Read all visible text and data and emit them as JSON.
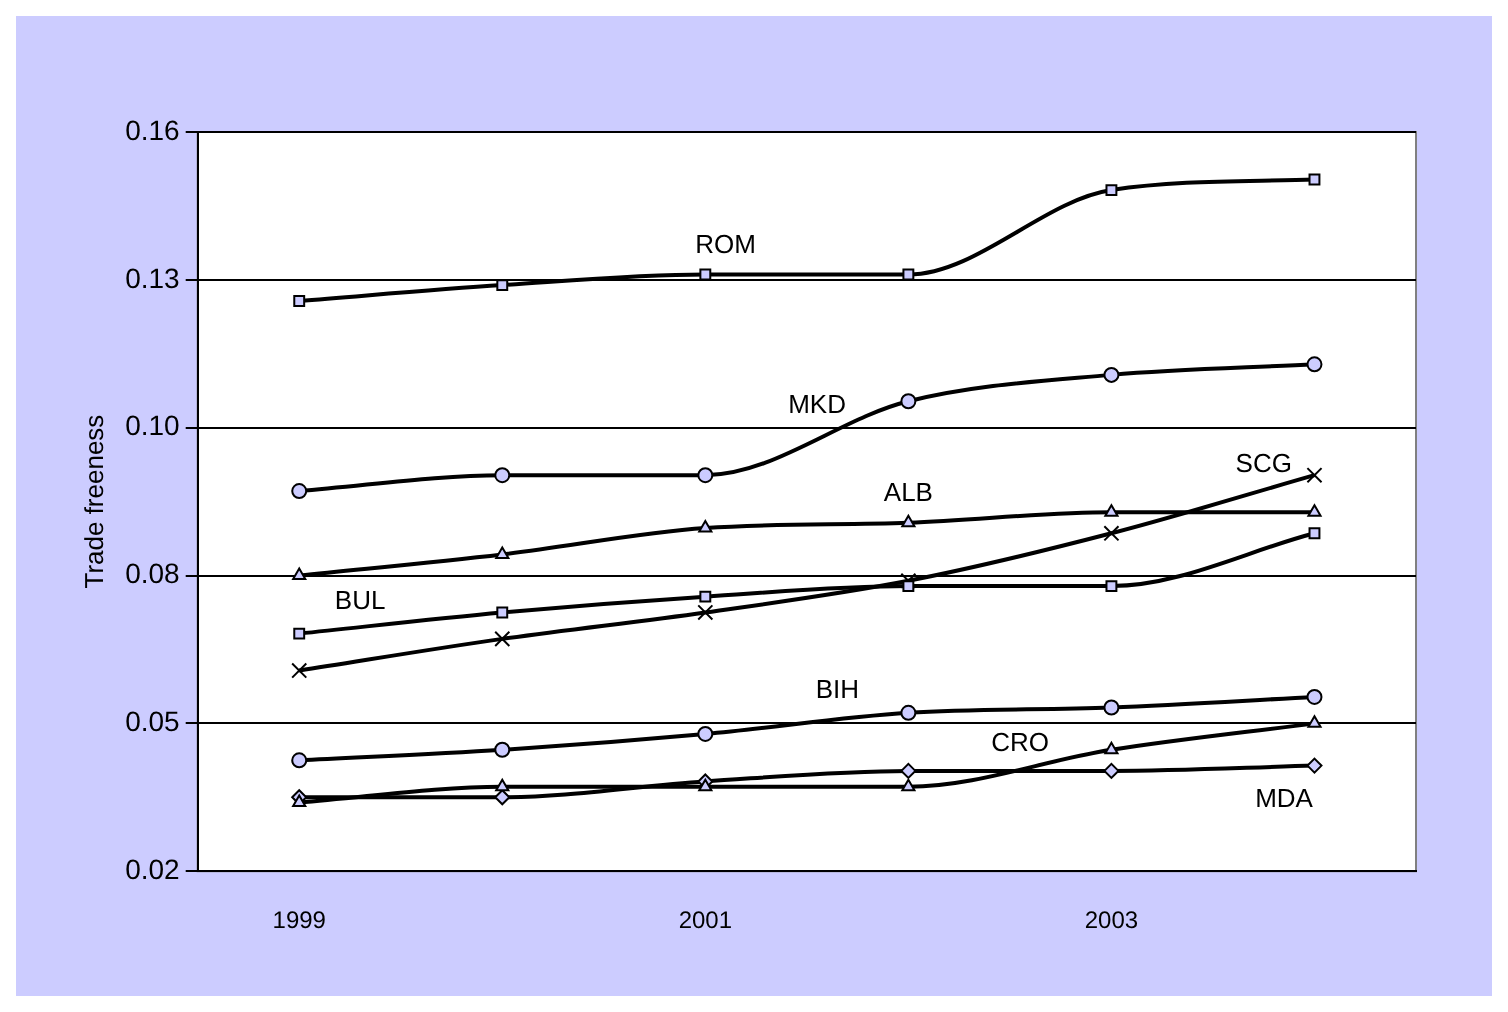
{
  "chart_data": {
    "type": "line",
    "ylabel": "Trade freeness",
    "categories": [
      "1999",
      null,
      "2001",
      null,
      "2003",
      null
    ],
    "series": [
      {
        "name": "ROM",
        "color": "#000000",
        "marker": "square",
        "values": [
          0.128,
          0.131,
          0.133,
          0.133,
          0.149,
          0.151
        ]
      },
      {
        "name": "MKD",
        "color": "#000000",
        "marker": "circle",
        "values": [
          0.092,
          0.095,
          0.095,
          0.109,
          0.114,
          0.116
        ]
      },
      {
        "name": "ALB",
        "color": "#000000",
        "marker": "triangle",
        "values": [
          0.076,
          0.08,
          0.085,
          0.086,
          0.088,
          0.088
        ]
      },
      {
        "name": "BUL",
        "color": "#000000",
        "marker": "square",
        "values": [
          0.065,
          0.069,
          0.072,
          0.074,
          0.074,
          0.084
        ]
      },
      {
        "name": "SCG",
        "color": "#000000",
        "marker": "cross",
        "values": [
          0.058,
          0.064,
          0.069,
          0.075,
          0.084,
          0.095
        ]
      },
      {
        "name": "BIH",
        "color": "#000000",
        "marker": "circle",
        "values": [
          0.041,
          0.043,
          0.046,
          0.05,
          0.051,
          0.053
        ]
      },
      {
        "name": "CRO",
        "color": "#000000",
        "marker": "triangle",
        "values": [
          0.033,
          0.036,
          0.036,
          0.036,
          0.043,
          0.048
        ]
      },
      {
        "name": "MDA",
        "color": "#000000",
        "marker": "diamond",
        "values": [
          0.034,
          0.034,
          0.037,
          0.039,
          0.039,
          0.04
        ]
      }
    ],
    "ylim": [
      0.02,
      0.16
    ],
    "yticks": [
      0.02,
      {
        "value": 0.048,
        "label": "0.05"
      },
      {
        "value": 0.076,
        "label": "0.08"
      },
      {
        "value": 0.104,
        "label": "0.10"
      },
      {
        "value": 0.132,
        "label": "0.13"
      },
      0.16
    ],
    "grid": "y",
    "legend": false
  }
}
